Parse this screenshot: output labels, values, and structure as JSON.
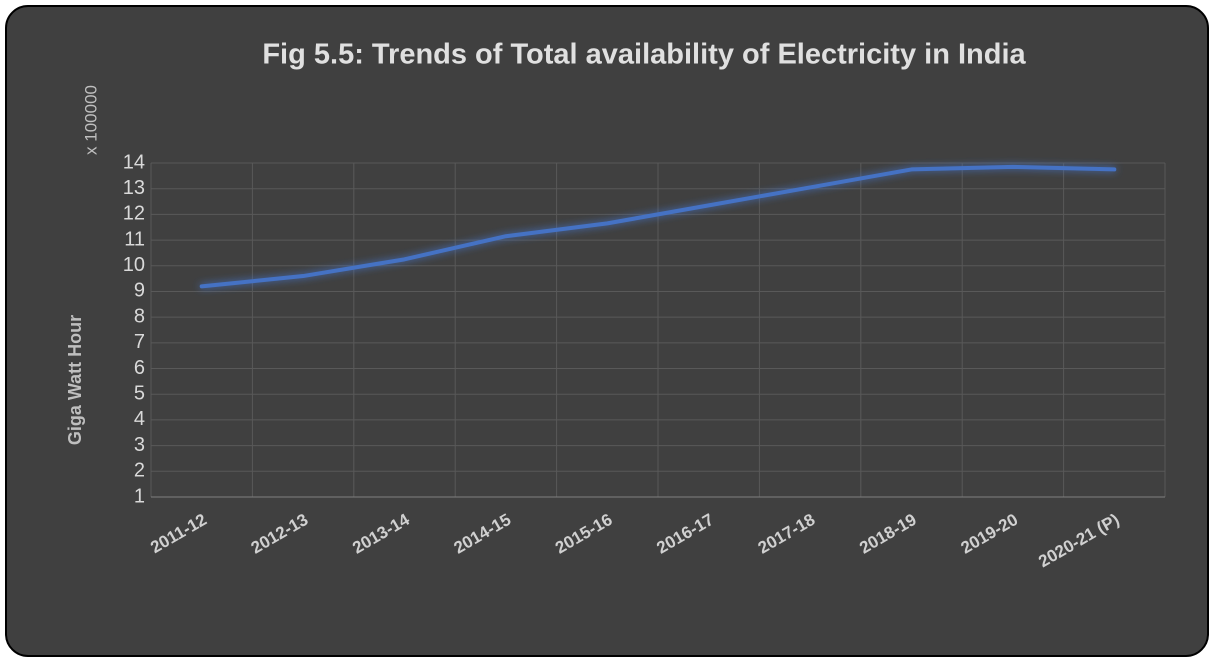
{
  "chart_data": {
    "type": "line",
    "title": "Fig 5.5: Trends of  Total availability of Electricity in India",
    "y_label": "Giga Watt Hour",
    "display_unit": "x 100000",
    "categories": [
      "2011-12",
      "2012-13",
      "2013-14",
      "2014-15",
      "2015-16",
      "2016-17",
      "2017-18",
      "2018-19",
      "2019-20",
      "2020-21 (P)"
    ],
    "series": [
      {
        "name": "Total availability of Electricity",
        "color": "#4472c4",
        "values": [
          9.2,
          9.6,
          10.25,
          11.15,
          11.65,
          12.35,
          13.05,
          13.75,
          13.85,
          13.75
        ]
      }
    ],
    "ylim": [
      1,
      14
    ],
    "yticks": [
      1,
      2,
      3,
      4,
      5,
      6,
      7,
      8,
      9,
      10,
      11,
      12,
      13,
      14
    ],
    "grid": true
  }
}
